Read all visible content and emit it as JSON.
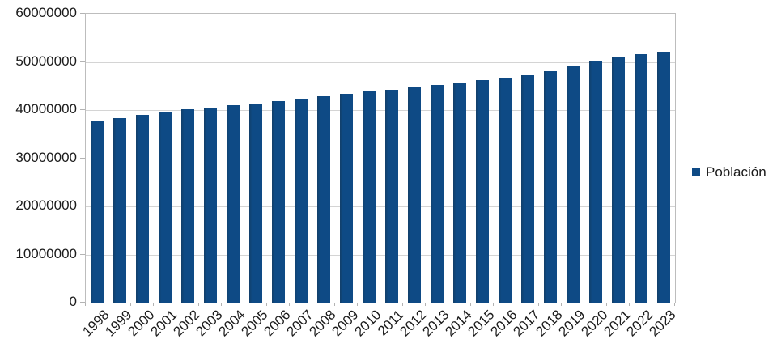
{
  "chart_data": {
    "type": "bar",
    "title": "",
    "xlabel": "",
    "ylabel": "",
    "categories": [
      "1998",
      "1999",
      "2000",
      "2001",
      "2002",
      "2003",
      "2004",
      "2005",
      "2006",
      "2007",
      "2008",
      "2009",
      "2010",
      "2011",
      "2012",
      "2013",
      "2014",
      "2015",
      "2016",
      "2017",
      "2018",
      "2019",
      "2020",
      "2021",
      "2022",
      "2023"
    ],
    "series": [
      {
        "name": "Población",
        "values": [
          37800000,
          38400000,
          38950000,
          39550000,
          40100000,
          40450000,
          40950000,
          41400000,
          41850000,
          42350000,
          42900000,
          43300000,
          43800000,
          44250000,
          44800000,
          45250000,
          45650000,
          46150000,
          46600000,
          47250000,
          48000000,
          49150000,
          50250000,
          51000000,
          51600000,
          52100000
        ]
      }
    ],
    "ylim": [
      0,
      60000000
    ],
    "y_tick_step": 10000000,
    "y_tick_labels": [
      "0",
      "10000000",
      "20000000",
      "30000000",
      "40000000",
      "50000000",
      "60000000"
    ],
    "grid": true,
    "legend_position": "right"
  },
  "legend": {
    "label": "Población"
  },
  "colors": {
    "bar": "#0e4a85",
    "bar_edge": "#123f69",
    "gridline": "#d4d4d4",
    "plot_border": "#bdbdbd",
    "tick": "#b3b3b3",
    "text": "#1b1b1b",
    "background": "#ffffff"
  }
}
